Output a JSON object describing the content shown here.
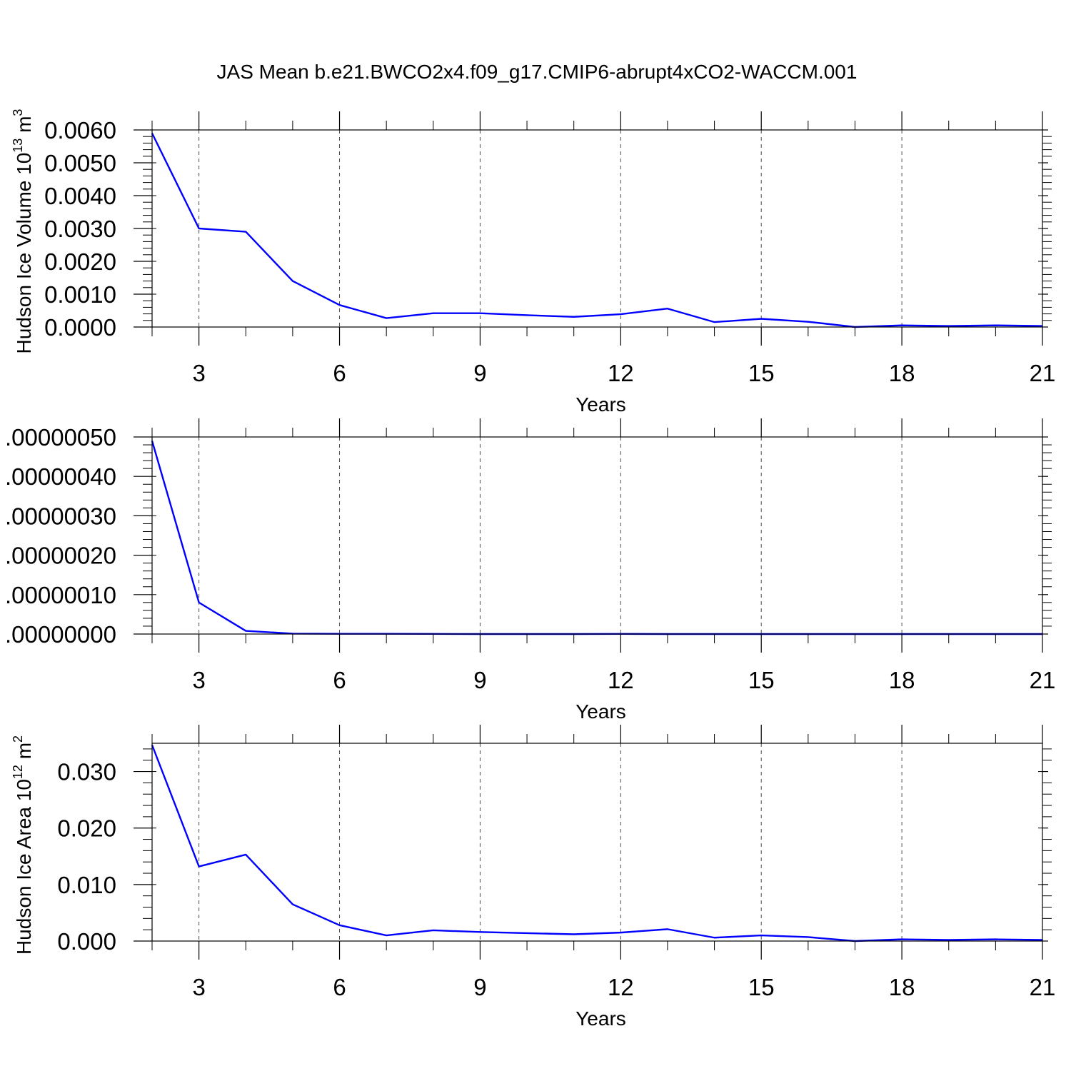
{
  "title": "JAS Mean b.e21.BWCO2x4.f09_g17.CMIP6-abrupt4xCO2-WACCM.001",
  "colors": {
    "line": "#0000ff",
    "frame": "#000000",
    "grid": "#000000"
  },
  "chart_data": [
    {
      "type": "line",
      "ylabel_main": "Hudson Ice Volume 10",
      "ylabel_sup": "13",
      "ylabel_unit": " m",
      "ylabel_unit_sup": "3",
      "xlabel": "Years",
      "xlim": [
        2,
        21
      ],
      "xticks": [
        3,
        6,
        9,
        12,
        15,
        18,
        21
      ],
      "xtick_labels": [
        "3",
        "6",
        "9",
        "12",
        "15",
        "18",
        "21"
      ],
      "ylim": [
        0,
        0.006
      ],
      "yticks": [
        0,
        0.001,
        0.002,
        0.003,
        0.004,
        0.005,
        0.006
      ],
      "ytick_labels": [
        "0.0000",
        "0.0010",
        "0.0020",
        "0.0030",
        "0.0040",
        "0.0050",
        "0.0060"
      ],
      "grid": "vertical dashed at major x ticks",
      "x": [
        2,
        3,
        4,
        5,
        6,
        7,
        8,
        9,
        10,
        11,
        12,
        13,
        14,
        15,
        16,
        17,
        18,
        19,
        20,
        21
      ],
      "values": [
        0.0059,
        0.003,
        0.0029,
        0.0014,
        0.00067,
        0.00027,
        0.00042,
        0.00042,
        0.00036,
        0.00031,
        0.00039,
        0.00056,
        0.00015,
        0.00025,
        0.00016,
        0.0,
        5e-05,
        3e-05,
        5e-05,
        3e-05
      ]
    },
    {
      "type": "line",
      "xlabel": "Years",
      "xlim": [
        2,
        21
      ],
      "xticks": [
        3,
        6,
        9,
        12,
        15,
        18,
        21
      ],
      "xtick_labels": [
        "3",
        "6",
        "9",
        "12",
        "15",
        "18",
        "21"
      ],
      "ylim": [
        0,
        5e-07
      ],
      "yticks": [
        0,
        1e-07,
        2e-07,
        3e-07,
        4e-07,
        5e-07
      ],
      "ytick_labels": [
        ".00000000",
        ".00000010",
        ".00000020",
        ".00000030",
        ".00000040",
        ".00000050"
      ],
      "grid": "vertical dashed at major x ticks",
      "x": [
        2,
        3,
        4,
        5,
        6,
        7,
        8,
        9,
        10,
        11,
        12,
        13,
        14,
        15,
        16,
        17,
        18,
        19,
        20,
        21
      ],
      "values": [
        4.9e-07,
        8e-08,
        8e-09,
        1e-09,
        5e-10,
        5e-10,
        3e-10,
        0.0,
        0.0,
        0.0,
        3e-10,
        0.0,
        0.0,
        0.0,
        0.0,
        0.0,
        0.0,
        0.0,
        0.0,
        0.0
      ]
    },
    {
      "type": "line",
      "ylabel_main": "Hudson Ice Area 10",
      "ylabel_sup": "12",
      "ylabel_unit": " m",
      "ylabel_unit_sup": "2",
      "xlabel": "Years",
      "xlim": [
        2,
        21
      ],
      "xticks": [
        3,
        6,
        9,
        12,
        15,
        18,
        21
      ],
      "xtick_labels": [
        "3",
        "6",
        "9",
        "12",
        "15",
        "18",
        "21"
      ],
      "ylim": [
        0,
        0.035
      ],
      "yticks": [
        0,
        0.01,
        0.02,
        0.03
      ],
      "ytick_labels": [
        "0.000",
        "0.010",
        "0.020",
        "0.030"
      ],
      "grid": "vertical dashed at major x ticks",
      "x": [
        2,
        3,
        4,
        5,
        6,
        7,
        8,
        9,
        10,
        11,
        12,
        13,
        14,
        15,
        16,
        17,
        18,
        19,
        20,
        21
      ],
      "values": [
        0.0347,
        0.0132,
        0.0153,
        0.0065,
        0.0028,
        0.001,
        0.0019,
        0.0016,
        0.0014,
        0.0012,
        0.0015,
        0.0021,
        0.0006,
        0.001,
        0.0007,
        0.0,
        0.0003,
        0.0002,
        0.0003,
        0.0002
      ]
    }
  ]
}
